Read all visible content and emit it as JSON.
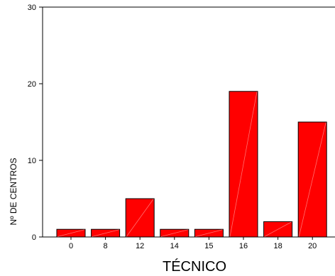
{
  "chart_data": {
    "type": "bar",
    "categories": [
      "0",
      "8",
      "12",
      "14",
      "15",
      "16",
      "18",
      "20"
    ],
    "values": [
      1,
      1,
      5,
      1,
      1,
      19,
      2,
      15
    ],
    "xlabel": "TÉCNICO",
    "ylabel": "Nº DE CENTROS",
    "ylim": [
      0,
      30
    ],
    "yticks": [
      0,
      10,
      20,
      30
    ],
    "bar_color": "#ff0000",
    "bar_edge_color": "#000000",
    "grid": false
  }
}
